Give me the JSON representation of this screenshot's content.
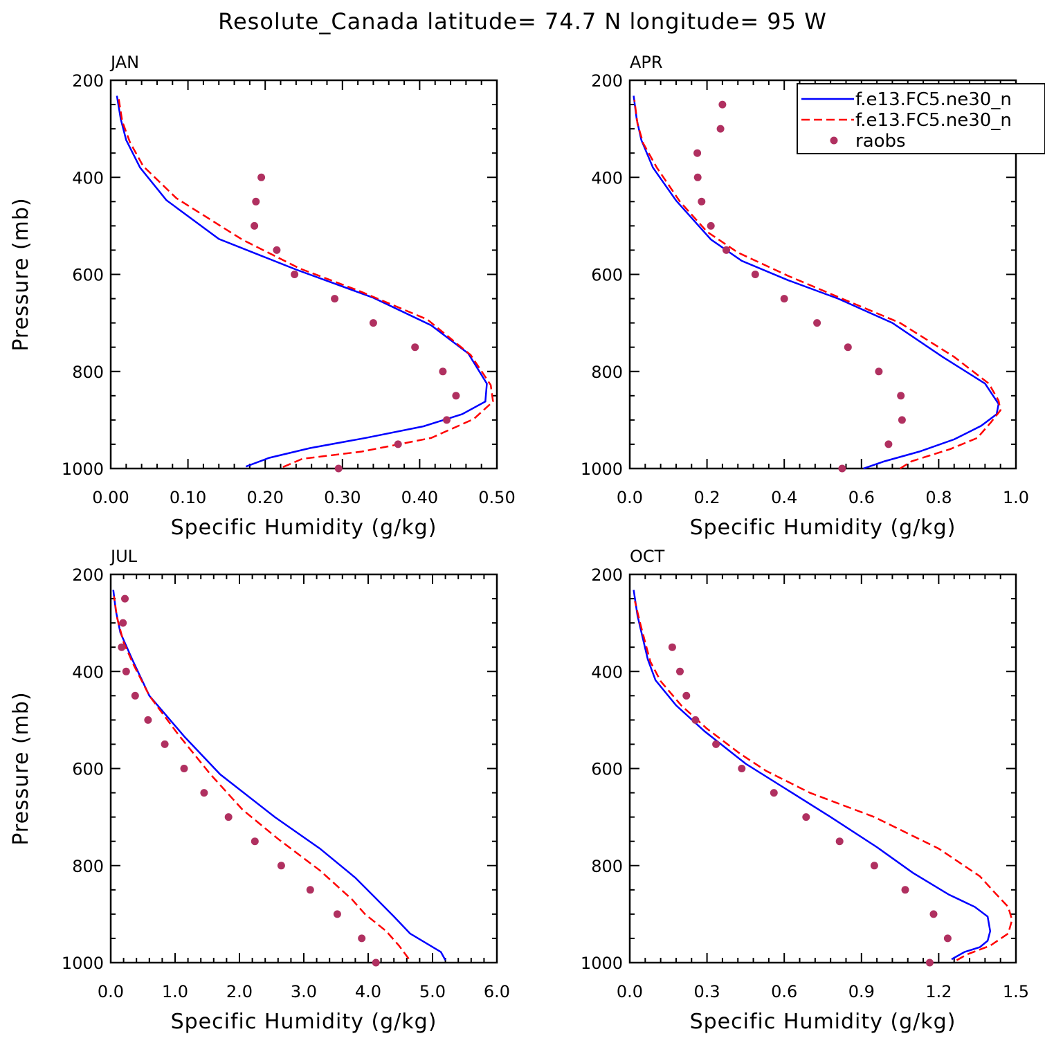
{
  "title": "Resolute_Canada  latitude= 74.7 N longitude= 95 W",
  "legend": {
    "position": "top-right of APR panel",
    "entries": [
      {
        "label": "f.e13.FC5.ne30_n",
        "style": "solid",
        "color": "#0000ff"
      },
      {
        "label": "f.e13.FC5.ne30_n",
        "style": "dashed",
        "color": "#ff0000"
      },
      {
        "label": "raobs",
        "style": "dots",
        "color": "#b03060"
      }
    ]
  },
  "colors": {
    "series1": "#0000ff",
    "series2": "#ff0000",
    "obs": "#b03060"
  },
  "chart_data": [
    {
      "type": "line",
      "panel": "JAN",
      "xlabel": "Specific Humidity (g/kg)",
      "ylabel": "Pressure (mb)",
      "xlim": [
        0,
        0.5
      ],
      "ylim": [
        1000,
        200
      ],
      "xticks": [
        "0.00",
        "0.10",
        "0.20",
        "0.30",
        "0.40",
        "0.50"
      ],
      "yticks": [
        "200",
        "400",
        "600",
        "800",
        "1000"
      ],
      "series": [
        {
          "name": "f.e13.FC5.ne30_n",
          "style": "solid",
          "points": [
            [
              0.175,
              996
            ],
            [
              0.205,
              978
            ],
            [
              0.258,
              958
            ],
            [
              0.33,
              937
            ],
            [
              0.405,
              913
            ],
            [
              0.455,
              888
            ],
            [
              0.485,
              862
            ],
            [
              0.487,
              825
            ],
            [
              0.463,
              763
            ],
            [
              0.415,
              705
            ],
            [
              0.34,
              648
            ],
            [
              0.24,
              590
            ],
            [
              0.14,
              527
            ],
            [
              0.072,
              447
            ],
            [
              0.038,
              380
            ],
            [
              0.02,
              323
            ],
            [
              0.013,
              280
            ],
            [
              0.008,
              232
            ]
          ]
        },
        {
          "name": "f.e13.FC5.ne30_n",
          "style": "dashed",
          "points": [
            [
              0.223,
              997
            ],
            [
              0.248,
              980
            ],
            [
              0.325,
              965
            ],
            [
              0.415,
              937
            ],
            [
              0.47,
              898
            ],
            [
              0.495,
              862
            ],
            [
              0.492,
              828
            ],
            [
              0.466,
              766
            ],
            [
              0.41,
              693
            ],
            [
              0.32,
              633
            ],
            [
              0.245,
              588
            ],
            [
              0.17,
              528
            ],
            [
              0.085,
              443
            ],
            [
              0.042,
              377
            ],
            [
              0.025,
              328
            ],
            [
              0.015,
              285
            ],
            [
              0.01,
              235
            ]
          ]
        }
      ],
      "observations": {
        "name": "raobs",
        "points": [
          [
            0.195,
            400
          ],
          [
            0.188,
            450
          ],
          [
            0.186,
            500
          ],
          [
            0.215,
            550
          ],
          [
            0.238,
            600
          ],
          [
            0.29,
            650
          ],
          [
            0.34,
            700
          ],
          [
            0.394,
            750
          ],
          [
            0.43,
            800
          ],
          [
            0.447,
            850
          ],
          [
            0.435,
            900
          ],
          [
            0.372,
            950
          ],
          [
            0.295,
            1000
          ]
        ]
      }
    },
    {
      "type": "line",
      "panel": "APR",
      "xlabel": "Specific Humidity (g/kg)",
      "ylabel": "",
      "xlim": [
        0,
        1.0
      ],
      "ylim": [
        1000,
        200
      ],
      "xticks": [
        "0.0",
        "0.2",
        "0.4",
        "0.6",
        "0.8",
        "1.0"
      ],
      "yticks": [
        "200",
        "400",
        "600",
        "800",
        "1000"
      ],
      "series": [
        {
          "name": "f.e13.FC5.ne30_n",
          "style": "solid",
          "points": [
            [
              0.605,
              1000
            ],
            [
              0.66,
              985
            ],
            [
              0.75,
              965
            ],
            [
              0.84,
              940
            ],
            [
              0.91,
              912
            ],
            [
              0.95,
              888
            ],
            [
              0.955,
              867
            ],
            [
              0.92,
              825
            ],
            [
              0.81,
              770
            ],
            [
              0.68,
              700
            ],
            [
              0.54,
              650
            ],
            [
              0.41,
              612
            ],
            [
              0.29,
              572
            ],
            [
              0.21,
              528
            ],
            [
              0.12,
              448
            ],
            [
              0.06,
              380
            ],
            [
              0.03,
              323
            ],
            [
              0.018,
              280
            ],
            [
              0.01,
              232
            ]
          ]
        },
        {
          "name": "f.e13.FC5.ne30_n",
          "style": "dashed",
          "points": [
            [
              0.7,
              1000
            ],
            [
              0.73,
              985
            ],
            [
              0.83,
              960
            ],
            [
              0.9,
              937
            ],
            [
              0.935,
              905
            ],
            [
              0.96,
              880
            ],
            [
              0.955,
              860
            ],
            [
              0.93,
              825
            ],
            [
              0.84,
              770
            ],
            [
              0.7,
              700
            ],
            [
              0.55,
              650
            ],
            [
              0.41,
              603
            ],
            [
              0.28,
              555
            ],
            [
              0.2,
              512
            ],
            [
              0.13,
              450
            ],
            [
              0.07,
              380
            ],
            [
              0.035,
              330
            ],
            [
              0.02,
              290
            ],
            [
              0.012,
              240
            ]
          ]
        }
      ],
      "observations": {
        "name": "raobs",
        "points": [
          [
            0.24,
            250
          ],
          [
            0.235,
            300
          ],
          [
            0.175,
            350
          ],
          [
            0.176,
            400
          ],
          [
            0.186,
            450
          ],
          [
            0.21,
            500
          ],
          [
            0.25,
            550
          ],
          [
            0.325,
            600
          ],
          [
            0.4,
            650
          ],
          [
            0.485,
            700
          ],
          [
            0.565,
            750
          ],
          [
            0.645,
            800
          ],
          [
            0.702,
            850
          ],
          [
            0.705,
            900
          ],
          [
            0.67,
            950
          ],
          [
            0.55,
            1000
          ]
        ]
      }
    },
    {
      "type": "line",
      "panel": "JUL",
      "xlabel": "Specific Humidity (g/kg)",
      "ylabel": "Pressure (mb)",
      "xlim": [
        0,
        6.0
      ],
      "ylim": [
        1000,
        200
      ],
      "xticks": [
        "0.0",
        "1.0",
        "2.0",
        "3.0",
        "4.0",
        "5.0",
        "6.0"
      ],
      "yticks": [
        "200",
        "400",
        "600",
        "800",
        "1000"
      ],
      "series": [
        {
          "name": "f.e13.FC5.ne30_n",
          "style": "solid",
          "points": [
            [
              5.2,
              995
            ],
            [
              5.13,
              978
            ],
            [
              4.65,
              940
            ],
            [
              4.4,
              905
            ],
            [
              4.1,
              865
            ],
            [
              3.8,
              825
            ],
            [
              3.25,
              765
            ],
            [
              2.55,
              700
            ],
            [
              1.7,
              612
            ],
            [
              1.15,
              535
            ],
            [
              0.6,
              450
            ],
            [
              0.35,
              380
            ],
            [
              0.15,
              320
            ],
            [
              0.08,
              275
            ],
            [
              0.04,
              232
            ]
          ]
        },
        {
          "name": "f.e13.FC5.ne30_n",
          "style": "dashed",
          "points": [
            [
              4.63,
              992
            ],
            [
              4.48,
              965
            ],
            [
              4.28,
              935
            ],
            [
              3.95,
              900
            ],
            [
              3.75,
              870
            ],
            [
              3.25,
              810
            ],
            [
              2.6,
              745
            ],
            [
              2.05,
              685
            ],
            [
              1.55,
              612
            ],
            [
              1.05,
              530
            ],
            [
              0.6,
              450
            ],
            [
              0.35,
              385
            ],
            [
              0.2,
              340
            ],
            [
              0.1,
              290
            ],
            [
              0.05,
              245
            ]
          ]
        }
      ],
      "observations": {
        "name": "raobs",
        "points": [
          [
            0.22,
            250
          ],
          [
            0.19,
            300
          ],
          [
            0.17,
            350
          ],
          [
            0.24,
            400
          ],
          [
            0.38,
            450
          ],
          [
            0.58,
            500
          ],
          [
            0.84,
            550
          ],
          [
            1.14,
            600
          ],
          [
            1.45,
            650
          ],
          [
            1.83,
            700
          ],
          [
            2.24,
            750
          ],
          [
            2.65,
            800
          ],
          [
            3.1,
            850
          ],
          [
            3.52,
            900
          ],
          [
            3.9,
            950
          ],
          [
            4.12,
            1000
          ]
        ]
      }
    },
    {
      "type": "line",
      "panel": "OCT",
      "xlabel": "Specific Humidity (g/kg)",
      "ylabel": "",
      "xlim": [
        0,
        1.5
      ],
      "ylim": [
        1000,
        200
      ],
      "xticks": [
        "0.0",
        "0.3",
        "0.6",
        "0.9",
        "1.2",
        "1.5"
      ],
      "yticks": [
        "200",
        "400",
        "600",
        "800",
        "1000"
      ],
      "series": [
        {
          "name": "f.e13.FC5.ne30_n",
          "style": "solid",
          "points": [
            [
              1.25,
              993
            ],
            [
              1.3,
              978
            ],
            [
              1.36,
              968
            ],
            [
              1.39,
              955
            ],
            [
              1.4,
              935
            ],
            [
              1.39,
              905
            ],
            [
              1.34,
              885
            ],
            [
              1.24,
              860
            ],
            [
              1.1,
              815
            ],
            [
              0.96,
              762
            ],
            [
              0.78,
              700
            ],
            [
              0.6,
              640
            ],
            [
              0.45,
              590
            ],
            [
              0.29,
              523
            ],
            [
              0.18,
              470
            ],
            [
              0.1,
              418
            ],
            [
              0.07,
              375
            ],
            [
              0.05,
              330
            ],
            [
              0.03,
              285
            ],
            [
              0.015,
              232
            ]
          ]
        },
        {
          "name": "f.e13.FC5.ne30_n",
          "style": "dashed",
          "points": [
            [
              1.27,
              995
            ],
            [
              1.31,
              983
            ],
            [
              1.4,
              965
            ],
            [
              1.47,
              940
            ],
            [
              1.485,
              912
            ],
            [
              1.47,
              885
            ],
            [
              1.42,
              857
            ],
            [
              1.36,
              822
            ],
            [
              1.2,
              765
            ],
            [
              0.95,
              700
            ],
            [
              0.7,
              650
            ],
            [
              0.53,
              605
            ],
            [
              0.43,
              570
            ],
            [
              0.3,
              518
            ],
            [
              0.2,
              470
            ],
            [
              0.12,
              420
            ],
            [
              0.08,
              380
            ],
            [
              0.06,
              340
            ],
            [
              0.04,
              300
            ],
            [
              0.02,
              255
            ]
          ]
        }
      ],
      "observations": {
        "name": "raobs",
        "points": [
          [
            0.165,
            350
          ],
          [
            0.195,
            400
          ],
          [
            0.22,
            450
          ],
          [
            0.255,
            500
          ],
          [
            0.335,
            550
          ],
          [
            0.435,
            600
          ],
          [
            0.56,
            650
          ],
          [
            0.685,
            700
          ],
          [
            0.815,
            750
          ],
          [
            0.95,
            800
          ],
          [
            1.07,
            850
          ],
          [
            1.18,
            900
          ],
          [
            1.235,
            950
          ],
          [
            1.165,
            1000
          ]
        ]
      }
    }
  ]
}
